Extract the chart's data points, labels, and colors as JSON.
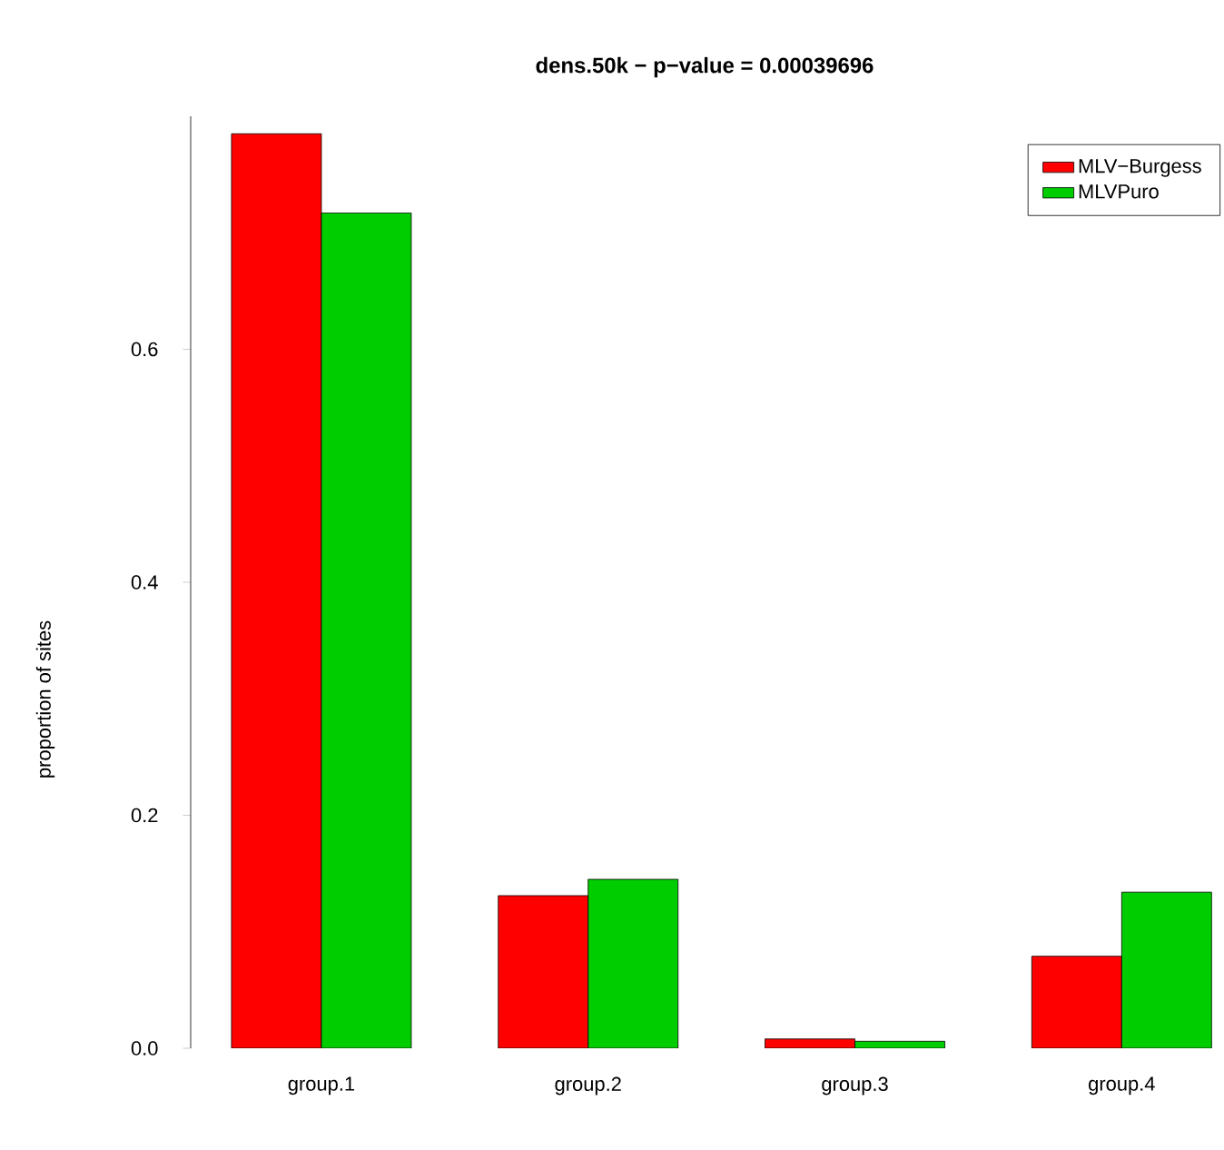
{
  "chart_data": {
    "type": "bar",
    "title": "dens.50k  − p−value = 0.00039696",
    "ylabel": "proportion of sites",
    "categories": [
      "group.1",
      "group.2",
      "group.3",
      "group.4"
    ],
    "series": [
      {
        "name": "MLV−Burgess",
        "color": "#ff0000",
        "values": [
          0.785,
          0.131,
          0.008,
          0.079
        ]
      },
      {
        "name": "MLVPuro",
        "color": "#00cd00",
        "values": [
          0.717,
          0.145,
          0.006,
          0.134
        ]
      }
    ],
    "ylim": [
      0,
      0.8
    ],
    "yticks": [
      {
        "value": 0,
        "label": "0.0"
      },
      {
        "value": 0.2,
        "label": "0.2"
      },
      {
        "value": 0.4,
        "label": "0.4"
      },
      {
        "value": 0.6,
        "label": "0.6"
      }
    ],
    "legend": "top right",
    "grid": false
  }
}
